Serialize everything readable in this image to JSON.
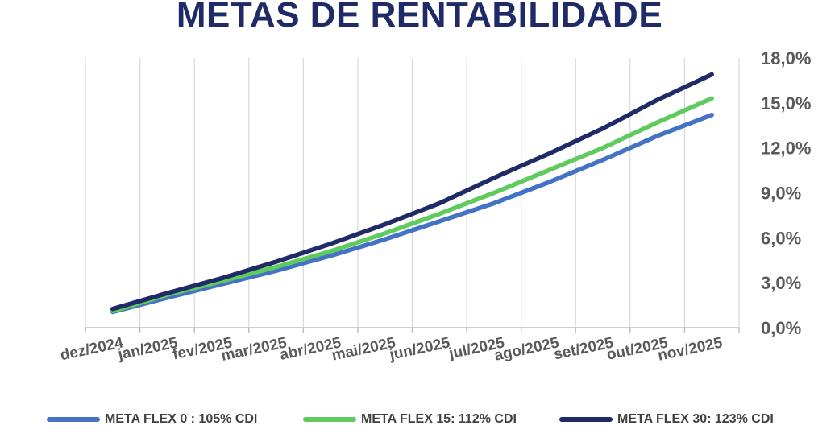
{
  "chart_data": {
    "type": "line",
    "title": "METAS DE RENTABILIDADE",
    "xlabel": "",
    "ylabel": "",
    "x": [
      "dez/2024",
      "jan/2025",
      "fev/2025",
      "mar/2025",
      "abr/2025",
      "mai/2025",
      "jun/2025",
      "jul/2025",
      "ago/2025",
      "set/2025",
      "out/2025",
      "nov/2025"
    ],
    "y_ticks": [
      "0,0%",
      "3,0%",
      "6,0%",
      "9,0%",
      "12,0%",
      "15,0%",
      "18,0%"
    ],
    "ylim": [
      0,
      18
    ],
    "y_axis_position": "right",
    "grid": "vertical",
    "legend_position": "bottom",
    "series": [
      {
        "name": "META FLEX 0 : 105% CDI",
        "color": "#4472C4",
        "values": [
          1.05,
          2.0,
          2.9,
          3.8,
          4.8,
          5.9,
          7.1,
          8.3,
          9.7,
          11.2,
          12.8,
          14.2
        ]
      },
      {
        "name": "META FLEX 15: 112% CDI",
        "color": "#5FCB5E",
        "values": [
          1.1,
          2.2,
          3.1,
          4.05,
          5.1,
          6.3,
          7.6,
          9.0,
          10.5,
          12.0,
          13.7,
          15.3
        ]
      },
      {
        "name": "META FLEX 30: 123% CDI",
        "color": "#1F2A66",
        "values": [
          1.25,
          2.3,
          3.3,
          4.4,
          5.6,
          6.9,
          8.3,
          10.0,
          11.6,
          13.3,
          15.2,
          16.9
        ]
      }
    ]
  },
  "colors": {
    "title": "#1F2A66",
    "grid": "#D9D9D9",
    "axis_text": "#595959"
  }
}
